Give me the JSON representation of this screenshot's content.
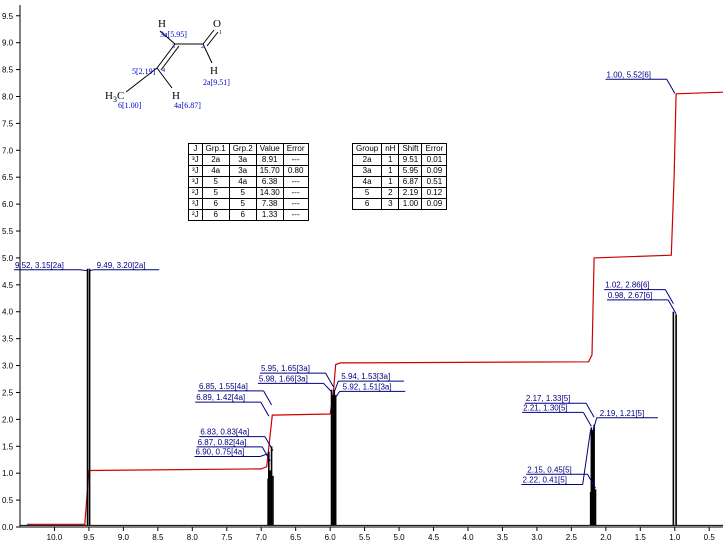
{
  "chart_data": {
    "type": "line",
    "title": "",
    "xlabel": "",
    "ylabel": "",
    "x_reversed": true,
    "xlim": [
      10.5,
      0.3
    ],
    "ylim": [
      0,
      9.7
    ],
    "x_ticks": [
      "10.0",
      "9.5",
      "9.0",
      "8.5",
      "8.0",
      "7.5",
      "7.0",
      "6.5",
      "6.0",
      "5.5",
      "5.0",
      "4.5",
      "4.0",
      "3.5",
      "3.0",
      "2.5",
      "2.0",
      "1.5",
      "1.0",
      "0.5"
    ],
    "y_ticks": [
      "0.0",
      "0.5",
      "1.0",
      "1.5",
      "2.0",
      "2.5",
      "3.0",
      "3.5",
      "4.0",
      "4.5",
      "5.0",
      "5.5",
      "6.0",
      "6.5",
      "7.0",
      "7.5",
      "8.0",
      "8.5",
      "9.0",
      "9.5"
    ],
    "colors": {
      "spectrum": "#000000",
      "integral": "#d00000",
      "peak_label": "#000080",
      "structure_label": "#0000cc"
    },
    "peaks": [
      {
        "x": 9.52,
        "h": 4.8
      },
      {
        "x": 9.49,
        "h": 4.8
      },
      {
        "x": 6.9,
        "h": 0.9
      },
      {
        "x": 6.89,
        "h": 1.4
      },
      {
        "x": 6.87,
        "h": 1.05
      },
      {
        "x": 6.85,
        "h": 1.5
      },
      {
        "x": 6.83,
        "h": 0.95
      },
      {
        "x": 5.98,
        "h": 2.55
      },
      {
        "x": 5.96,
        "h": 2.45
      },
      {
        "x": 5.94,
        "h": 2.55
      },
      {
        "x": 5.92,
        "h": 2.45
      },
      {
        "x": 2.22,
        "h": 0.65
      },
      {
        "x": 2.21,
        "h": 1.85
      },
      {
        "x": 2.19,
        "h": 1.8
      },
      {
        "x": 2.17,
        "h": 1.9
      },
      {
        "x": 2.15,
        "h": 0.7
      },
      {
        "x": 1.02,
        "h": 4.0
      },
      {
        "x": 0.98,
        "h": 3.95
      }
    ],
    "integral": [
      [
        10.4,
        0.05
      ],
      [
        9.56,
        0.05
      ],
      [
        9.5,
        1.05
      ],
      [
        7.0,
        1.08
      ],
      [
        6.92,
        1.12
      ],
      [
        6.84,
        2.08
      ],
      [
        6.0,
        2.1
      ],
      [
        5.96,
        2.4
      ],
      [
        5.92,
        3.02
      ],
      [
        5.85,
        3.05
      ],
      [
        2.25,
        3.07
      ],
      [
        2.2,
        3.2
      ],
      [
        2.17,
        5.0
      ],
      [
        1.05,
        5.05
      ],
      [
        1.01,
        6.5
      ],
      [
        0.98,
        8.05
      ],
      [
        0.3,
        8.08
      ]
    ],
    "peak_labels": [
      {
        "text": "9.52, 3.15[2a]",
        "x": 9.52,
        "y": 4.78,
        "side": "left"
      },
      {
        "text": "9.49, 3.20[2a]",
        "x": 9.49,
        "y": 4.78,
        "side": "right"
      },
      {
        "text": "6.85, 1.55[4a]",
        "x": 6.85,
        "y": 2.53,
        "side": "left"
      },
      {
        "text": "6.89, 1.42[4a]",
        "x": 6.89,
        "y": 2.32,
        "side": "left"
      },
      {
        "text": "6.83, 0.83[4a]",
        "x": 6.83,
        "y": 1.68,
        "side": "left"
      },
      {
        "text": "6.87, 0.82[4a]",
        "x": 6.87,
        "y": 1.49,
        "side": "left"
      },
      {
        "text": "6.90, 0.75[4a]",
        "x": 6.9,
        "y": 1.31,
        "side": "left"
      },
      {
        "text": "5.95, 1.65[3a]",
        "x": 5.95,
        "y": 2.86,
        "side": "left"
      },
      {
        "text": "5.98, 1.66[3a]",
        "x": 5.98,
        "y": 2.67,
        "side": "left"
      },
      {
        "text": "5.94, 1.53[3a]",
        "x": 5.94,
        "y": 2.71,
        "side": "right"
      },
      {
        "text": "5.92, 1.51[3a]",
        "x": 5.92,
        "y": 2.52,
        "side": "right"
      },
      {
        "text": "2.17, 1.33[5]",
        "x": 2.17,
        "y": 2.3,
        "side": "left"
      },
      {
        "text": "2.21, 1.30[5]",
        "x": 2.21,
        "y": 2.13,
        "side": "left"
      },
      {
        "text": "2.19, 1.21[5]",
        "x": 2.19,
        "y": 2.03,
        "side": "right"
      },
      {
        "text": "2.15, 0.45[5]",
        "x": 2.15,
        "y": 0.98,
        "side": "left"
      },
      {
        "text": "2.22, 0.41[5]",
        "x": 2.22,
        "y": 0.79,
        "side": "left"
      },
      {
        "text": "1.00, 5.52[6]",
        "x": 1.0,
        "y": 8.32,
        "side": "left"
      },
      {
        "text": "1.02, 2.86[6]",
        "x": 1.02,
        "y": 4.41,
        "side": "left"
      },
      {
        "text": "0.98, 2.67[6]",
        "x": 0.98,
        "y": 4.22,
        "side": "left"
      }
    ]
  },
  "structure": {
    "atoms": [
      "H",
      "O",
      "H",
      "H",
      "H"
    ],
    "methyl": "H",
    "methyl_sub": "3",
    "methyl_tail": "C",
    "labels": [
      "3a[5.95]",
      "2a[9.51]",
      "5[2.19]",
      "4a[6.87]",
      "6[1.00]"
    ],
    "atom_numbers": [
      "3",
      "2",
      "1",
      "4"
    ]
  },
  "coupling_table": {
    "headers": [
      "J",
      "Grp.1",
      "Grp.2",
      "Value",
      "Error"
    ],
    "rows": [
      [
        "³J",
        "2a",
        "3a",
        "8.91",
        "---"
      ],
      [
        "³J",
        "4a",
        "3a",
        "15.70",
        "0.80"
      ],
      [
        "³J",
        "5",
        "4a",
        "6.38",
        "---"
      ],
      [
        "²J",
        "5",
        "5",
        "14.30",
        "---"
      ],
      [
        "³J",
        "6",
        "5",
        "7.38",
        "---"
      ],
      [
        "²J",
        "6",
        "6",
        "1.33",
        "---"
      ]
    ]
  },
  "shift_table": {
    "headers": [
      "Group",
      "nH",
      "Shift",
      "Error"
    ],
    "rows": [
      [
        "2a",
        "1",
        "9.51",
        "0.01"
      ],
      [
        "3a",
        "1",
        "5.95",
        "0.09"
      ],
      [
        "4a",
        "1",
        "6.87",
        "0.51"
      ],
      [
        "5",
        "2",
        "2.19",
        "0.12"
      ],
      [
        "6",
        "3",
        "1.00",
        "0.09"
      ]
    ]
  }
}
